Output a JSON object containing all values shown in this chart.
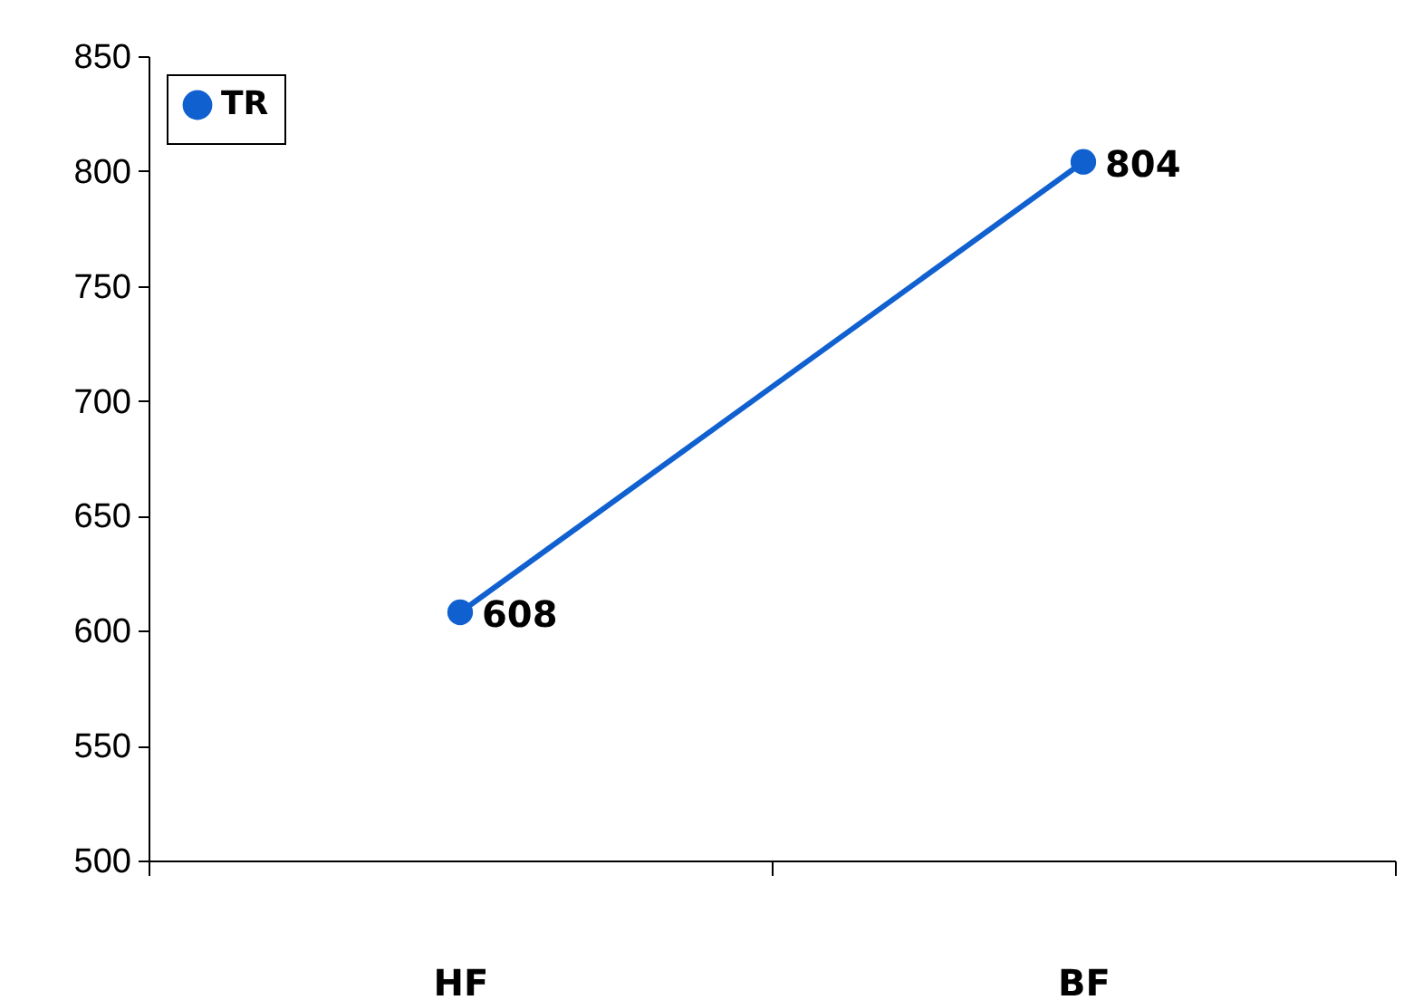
{
  "chart_data": {
    "type": "line",
    "categories": [
      "HF",
      "BF"
    ],
    "series": [
      {
        "name": "TR",
        "color": "#1060d0",
        "values": [
          608,
          804
        ]
      }
    ],
    "ylim": [
      500,
      850
    ],
    "yticks": [
      500,
      550,
      600,
      650,
      700,
      750,
      800,
      850
    ],
    "data_labels": true,
    "legend": "top left",
    "marker": "circle",
    "grid": false
  }
}
